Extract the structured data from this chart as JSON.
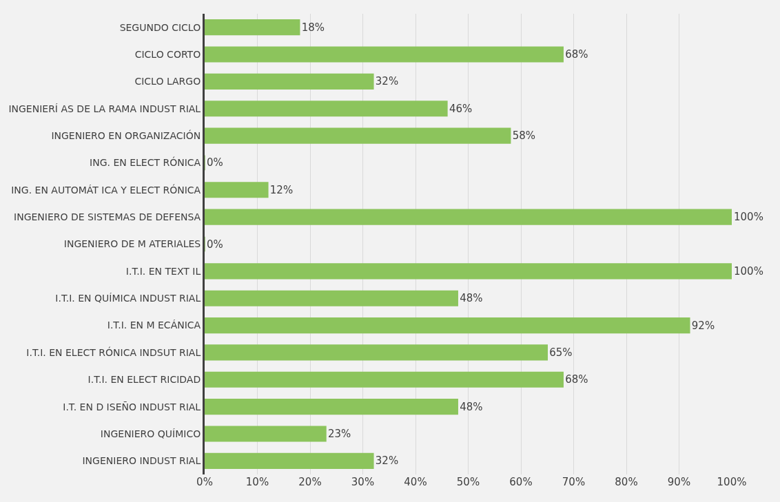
{
  "chart_data": {
    "type": "bar",
    "orientation": "horizontal",
    "categories": [
      "SEGUNDO CICLO",
      "CICLO CORTO",
      "CICLO LARGO",
      "INGENIERÍ AS DE LA RAMA INDUST RIAL",
      "INGENIERO EN ORGANIZACIÓN",
      "ING. EN ELECT RÓNICA",
      "ING. EN AUTOMÁT ICA Y ELECT RÓNICA",
      "INGENIERO DE SISTEMAS DE DEFENSA",
      "INGENIERO DE M ATERIALES",
      "I.T.I. EN TEXT IL",
      "I.T.I. EN QUÍMICA INDUST RIAL",
      "I.T.I. EN M ECÁNICA",
      "I.T.I. EN ELECT RÓNICA INDSUT RIAL",
      "I.T.I. EN ELECT RICIDAD",
      "I.T. EN D ISEÑO INDUST RIAL",
      "INGENIERO QUÍMICO",
      "INGENIERO INDUST RIAL"
    ],
    "values": [
      18,
      68,
      32,
      46,
      58,
      0,
      12,
      100,
      0,
      100,
      48,
      92,
      65,
      68,
      48,
      23,
      32
    ],
    "value_labels": [
      "18%",
      "68%",
      "32%",
      "46%",
      "58%",
      "0%",
      "12%",
      "100%",
      "0%",
      "100%",
      "48%",
      "92%",
      "65%",
      "68%",
      "48%",
      "23%",
      "32%"
    ],
    "color": "#8cc45c",
    "xlim": [
      0,
      100
    ],
    "xticks": [
      {
        "value": 0,
        "label": "0%"
      },
      {
        "value": 10,
        "label": "10%"
      },
      {
        "value": 20,
        "label": "20%"
      },
      {
        "value": 30,
        "label": "30%"
      },
      {
        "value": 40,
        "label": "40%"
      },
      {
        "value": 50,
        "label": "50%"
      },
      {
        "value": 60,
        "label": "60%"
      },
      {
        "value": 70,
        "label": "70%"
      },
      {
        "value": 80,
        "label": "80%"
      },
      {
        "value": 90,
        "label": "90%"
      },
      {
        "value": 100,
        "label": "100%"
      }
    ],
    "grid": "x",
    "legend": false
  }
}
